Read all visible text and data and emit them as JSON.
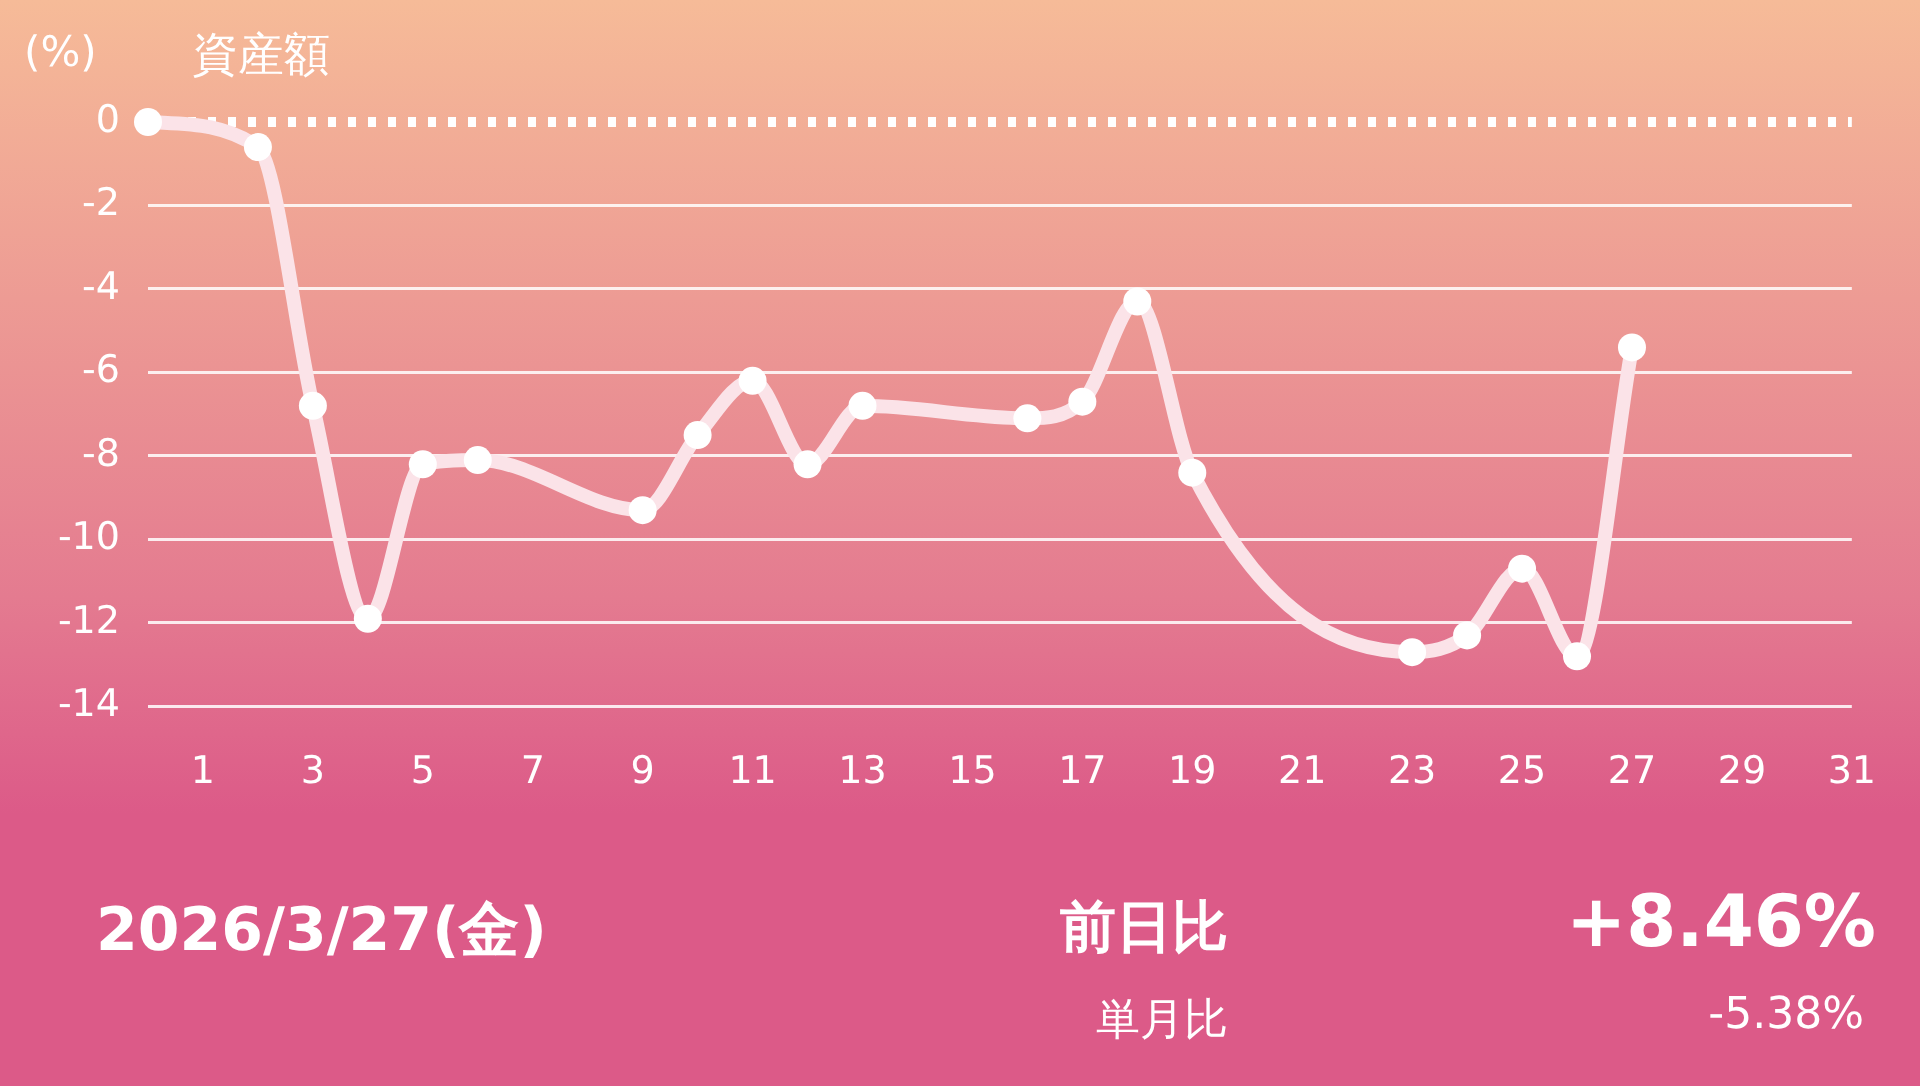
{
  "chart_data": {
    "type": "line",
    "title": "資産額",
    "ylabel": "(%)",
    "x": [
      0,
      2,
      3,
      4,
      5,
      6,
      9,
      10,
      11,
      12,
      13,
      16,
      17,
      18,
      19,
      23,
      24,
      25,
      26,
      27
    ],
    "series": [
      {
        "color": "#fbe3e8",
        "values": [
          0,
          -0.6,
          -6.8,
          -11.9,
          -8.2,
          -8.1,
          -9.3,
          -7.5,
          -6.2,
          -8.2,
          -6.8,
          -7.1,
          -6.7,
          -4.3,
          -8.4,
          -12.7,
          -12.3,
          -10.7,
          -12.8,
          -5.4
        ]
      }
    ],
    "xlim": [
      0,
      31
    ],
    "xticks": [
      1,
      3,
      5,
      7,
      9,
      11,
      13,
      15,
      17,
      19,
      21,
      23,
      25,
      27,
      29,
      31
    ],
    "ylim": [
      -14,
      0
    ],
    "yticks": [
      0,
      -2,
      -4,
      -6,
      -8,
      -10,
      -12,
      -14
    ],
    "grid": "y",
    "legend": false,
    "marker": "circle",
    "line_style": "solid",
    "ref_lines": [
      {
        "axis": "y",
        "value": 0,
        "color": "#ffffff",
        "line_style": "dotted"
      }
    ],
    "annotations": [
      "2026/3/27(金)",
      "前日比",
      "+8.46%",
      "単月比",
      "-5.38%"
    ]
  }
}
